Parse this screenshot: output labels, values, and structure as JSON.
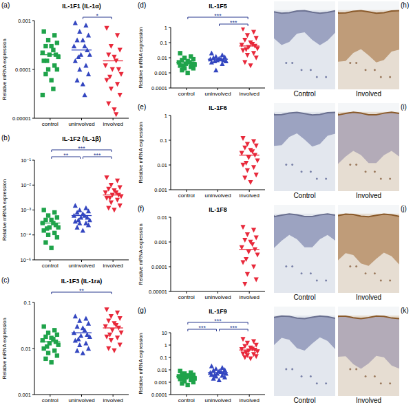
{
  "chart_data": [
    {
      "type": "scatter",
      "panel": "(a)",
      "title": "IL-1F1 (IL-1α)",
      "y_label": "Relative mRNA expression",
      "log": "y",
      "categories": [
        "control",
        "uninvolved",
        "involved"
      ],
      "ylim": [
        1e-05,
        0.001
      ],
      "yticks": [
        1e-05,
        0.0001,
        0.001
      ],
      "groups": [
        {
          "color": "#1fa34a",
          "marker": "square",
          "mean": 0.0002,
          "values": [
            0.0006,
            0.0005,
            0.0004,
            0.00035,
            0.0003,
            0.0003,
            0.00025,
            0.00022,
            0.0002,
            0.0002,
            0.00018,
            0.00015,
            0.00015,
            0.00012,
            0.0001,
            0.0001,
            8e-05,
            6e-05,
            4e-05,
            3e-05
          ]
        },
        {
          "color": "#3346c0",
          "marker": "triangle",
          "mean": 0.00025,
          "values": [
            0.0009,
            0.0008,
            0.0006,
            0.0005,
            0.0004,
            0.0004,
            0.0003,
            0.0003,
            0.00025,
            0.0002,
            0.0002,
            0.00018,
            0.00015,
            0.00012,
            0.0001,
            8e-05,
            6e-05,
            5e-05,
            3e-05
          ]
        },
        {
          "color": "#e8283a",
          "marker": "triangle-down",
          "mean": 0.00015,
          "values": [
            0.0007,
            0.0005,
            0.0003,
            0.00025,
            0.0002,
            0.00018,
            0.00015,
            0.00012,
            0.0001,
            0.0001,
            8e-05,
            7e-05,
            6e-05,
            5e-05,
            4e-05,
            3e-05,
            2e-05,
            1.5e-05,
            1.2e-05
          ]
        }
      ],
      "significance": [
        {
          "from": "uninvolved",
          "to": "involved",
          "label": "*"
        }
      ]
    },
    {
      "type": "scatter",
      "panel": "(b)",
      "title": "IL-1F2 (IL-1β)",
      "y_label": "Relative mRNA expression",
      "log": "y",
      "categories": [
        "control",
        "uninvolved",
        "involved"
      ],
      "ylim": [
        1e-05,
        0.1
      ],
      "yticks": [
        {
          "value": 1e-05,
          "label": "10⁻⁵"
        },
        {
          "value": 0.0001,
          "label": "10⁻⁴"
        },
        {
          "value": 0.001,
          "label": "10⁻³"
        },
        {
          "value": 0.01,
          "label": "10⁻²"
        },
        {
          "value": 0.1,
          "label": "10⁻¹"
        }
      ],
      "groups": [
        {
          "color": "#1fa34a",
          "marker": "square",
          "mean": 0.0003,
          "values": [
            0.001,
            0.0008,
            0.0006,
            0.0005,
            0.0004,
            0.0004,
            0.0003,
            0.0003,
            0.00025,
            0.0002,
            0.0002,
            0.00018,
            0.00015,
            0.00012,
            0.0001,
            8e-05,
            5e-05,
            3e-05
          ]
        },
        {
          "color": "#3346c0",
          "marker": "triangle",
          "mean": 0.0006,
          "values": [
            0.0015,
            0.0012,
            0.001,
            0.0009,
            0.0008,
            0.0007,
            0.0006,
            0.0006,
            0.0005,
            0.0005,
            0.0004,
            0.0004,
            0.00035,
            0.0003,
            0.0003,
            0.00025,
            0.0002,
            0.00015
          ]
        },
        {
          "color": "#e8283a",
          "marker": "triangle-down",
          "mean": 0.004,
          "values": [
            0.02,
            0.015,
            0.01,
            0.008,
            0.007,
            0.006,
            0.005,
            0.005,
            0.004,
            0.004,
            0.0035,
            0.003,
            0.003,
            0.0025,
            0.002,
            0.0015,
            0.0012,
            0.001
          ]
        }
      ],
      "significance": [
        {
          "from": "control",
          "to": "uninvolved",
          "label": "**"
        },
        {
          "from": "uninvolved",
          "to": "involved",
          "label": "***"
        },
        {
          "from": "control",
          "to": "involved",
          "label": "***"
        }
      ]
    },
    {
      "type": "scatter",
      "panel": "(c)",
      "title": "IL-1F3 (IL-1ra)",
      "y_label": "Relative mRNA expression",
      "log": "y",
      "categories": [
        "control",
        "uninvolved",
        "involved"
      ],
      "ylim": [
        0.001,
        0.1
      ],
      "yticks": [
        0.001,
        0.01,
        0.1
      ],
      "groups": [
        {
          "color": "#1fa34a",
          "marker": "square",
          "mean": 0.014,
          "values": [
            0.03,
            0.025,
            0.022,
            0.02,
            0.018,
            0.017,
            0.016,
            0.015,
            0.014,
            0.013,
            0.012,
            0.011,
            0.01,
            0.009,
            0.008,
            0.007,
            0.006,
            0.005
          ]
        },
        {
          "color": "#3346c0",
          "marker": "triangle",
          "mean": 0.022,
          "values": [
            0.05,
            0.045,
            0.04,
            0.035,
            0.03,
            0.028,
            0.025,
            0.022,
            0.02,
            0.019,
            0.018,
            0.016,
            0.015,
            0.013,
            0.012,
            0.01,
            0.009,
            0.008
          ]
        },
        {
          "color": "#e8283a",
          "marker": "triangle-down",
          "mean": 0.028,
          "values": [
            0.07,
            0.06,
            0.05,
            0.045,
            0.04,
            0.035,
            0.032,
            0.03,
            0.028,
            0.025,
            0.022,
            0.02,
            0.018,
            0.017,
            0.015,
            0.012,
            0.01,
            0.009
          ]
        }
      ],
      "significance": [
        {
          "from": "control",
          "to": "involved",
          "label": "**"
        }
      ]
    },
    {
      "type": "scatter",
      "panel": "(d)",
      "title": "IL-1F5",
      "y_label": "Relative mRNA expression",
      "log": "y",
      "categories": [
        "control",
        "uninvolved",
        "involved"
      ],
      "ylim": [
        0.0001,
        1
      ],
      "yticks": [
        0.0001,
        0.001,
        0.01,
        0.1,
        1
      ],
      "groups": [
        {
          "color": "#1fa34a",
          "marker": "square",
          "mean": 0.005,
          "values": [
            0.02,
            0.012,
            0.01,
            0.008,
            0.007,
            0.006,
            0.005,
            0.005,
            0.004,
            0.004,
            0.0035,
            0.003,
            0.003,
            0.0025,
            0.002,
            0.002,
            0.0015,
            0.001
          ]
        },
        {
          "color": "#3346c0",
          "marker": "triangle",
          "mean": 0.008,
          "values": [
            0.02,
            0.015,
            0.012,
            0.011,
            0.01,
            0.009,
            0.008,
            0.008,
            0.007,
            0.007,
            0.006,
            0.006,
            0.005,
            0.004,
            0.0015
          ]
        },
        {
          "color": "#e8283a",
          "marker": "triangle-down",
          "mean": 0.06,
          "values": [
            0.8,
            0.5,
            0.3,
            0.2,
            0.15,
            0.1,
            0.08,
            0.07,
            0.06,
            0.05,
            0.04,
            0.035,
            0.03,
            0.02,
            0.015,
            0.01,
            0.005,
            0.003
          ]
        }
      ],
      "significance": [
        {
          "from": "uninvolved",
          "to": "involved",
          "label": "***"
        },
        {
          "from": "control",
          "to": "involved",
          "label": "***"
        }
      ]
    },
    {
      "type": "scatter",
      "panel": "(e)",
      "title": "IL-1F6",
      "y_label": "Relative mRNA expression",
      "log": "y",
      "categories": [
        "control",
        "uninvolved",
        "involved"
      ],
      "ylim": [
        0.001,
        1
      ],
      "yticks": [
        0.001,
        0.01,
        0.1,
        1
      ],
      "groups": [
        {
          "color": "#1fa34a",
          "marker": "square",
          "mean": null,
          "values": []
        },
        {
          "color": "#3346c0",
          "marker": "triangle",
          "mean": null,
          "values": []
        },
        {
          "color": "#e8283a",
          "marker": "triangle-down",
          "mean": 0.025,
          "values": [
            0.12,
            0.09,
            0.07,
            0.06,
            0.05,
            0.04,
            0.035,
            0.03,
            0.025,
            0.02,
            0.015,
            0.012,
            0.01,
            0.008,
            0.006,
            0.004,
            0.003,
            0.002
          ]
        }
      ],
      "significance": []
    },
    {
      "type": "scatter",
      "panel": "(f)",
      "title": "IL-1F8",
      "y_label": "Relative mRNA expression",
      "log": "y",
      "categories": [
        "control",
        "uninvolved",
        "involved"
      ],
      "ylim": [
        1e-05,
        0.01
      ],
      "yticks": [
        1e-05,
        0.0001,
        0.001,
        0.01
      ],
      "groups": [
        {
          "color": "#1fa34a",
          "marker": "square",
          "mean": null,
          "values": []
        },
        {
          "color": "#3346c0",
          "marker": "triangle",
          "mean": null,
          "values": []
        },
        {
          "color": "#e8283a",
          "marker": "triangle-down",
          "mean": 0.0005,
          "values": [
            0.004,
            0.003,
            0.002,
            0.0015,
            0.0012,
            0.001,
            0.0008,
            0.0006,
            0.0005,
            0.0004,
            0.0003,
            0.0002,
            0.00015,
            0.0001,
            5e-05,
            3e-05,
            2e-05
          ]
        }
      ],
      "significance": []
    },
    {
      "type": "scatter",
      "panel": "(g)",
      "title": "IL-1F9",
      "y_label": "Relative mRNA expression",
      "log": "y",
      "categories": [
        "control",
        "uninvolved",
        "involved"
      ],
      "ylim": [
        0.0001,
        10
      ],
      "yticks": [
        0.0001,
        0.001,
        0.01,
        0.1,
        1,
        10
      ],
      "groups": [
        {
          "color": "#1fa34a",
          "marker": "square",
          "mean": 0.003,
          "values": [
            0.008,
            0.006,
            0.005,
            0.004,
            0.004,
            0.0035,
            0.003,
            0.003,
            0.0025,
            0.0025,
            0.002,
            0.002,
            0.0018,
            0.0015,
            0.0012,
            0.001,
            0.0008,
            0.0006
          ]
        },
        {
          "color": "#3346c0",
          "marker": "triangle",
          "mean": 0.006,
          "values": [
            0.02,
            0.015,
            0.012,
            0.01,
            0.009,
            0.008,
            0.007,
            0.006,
            0.006,
            0.005,
            0.005,
            0.004,
            0.004,
            0.0035,
            0.003,
            0.0025,
            0.002,
            0.0015
          ]
        },
        {
          "color": "#e8283a",
          "marker": "triangle-down",
          "mean": 0.4,
          "values": [
            3,
            2,
            1.5,
            1,
            0.8,
            0.6,
            0.5,
            0.45,
            0.4,
            0.35,
            0.3,
            0.25,
            0.2,
            0.18,
            0.15,
            0.12,
            0.1,
            0.08
          ]
        }
      ],
      "significance": [
        {
          "from": "control",
          "to": "uninvolved",
          "label": "***"
        },
        {
          "from": "uninvolved",
          "to": "involved",
          "label": "***"
        },
        {
          "from": "control",
          "to": "involved",
          "label": "***"
        }
      ]
    }
  ],
  "images": [
    {
      "panel": "(h)",
      "captions": [
        "Control",
        "Involved"
      ]
    },
    {
      "panel": "(i)",
      "captions": [
        "Control",
        "Involved"
      ]
    },
    {
      "panel": "(j)",
      "captions": [
        "Control",
        "Involved"
      ]
    },
    {
      "panel": "(k)",
      "captions": [
        "Control",
        "Involved"
      ]
    }
  ]
}
